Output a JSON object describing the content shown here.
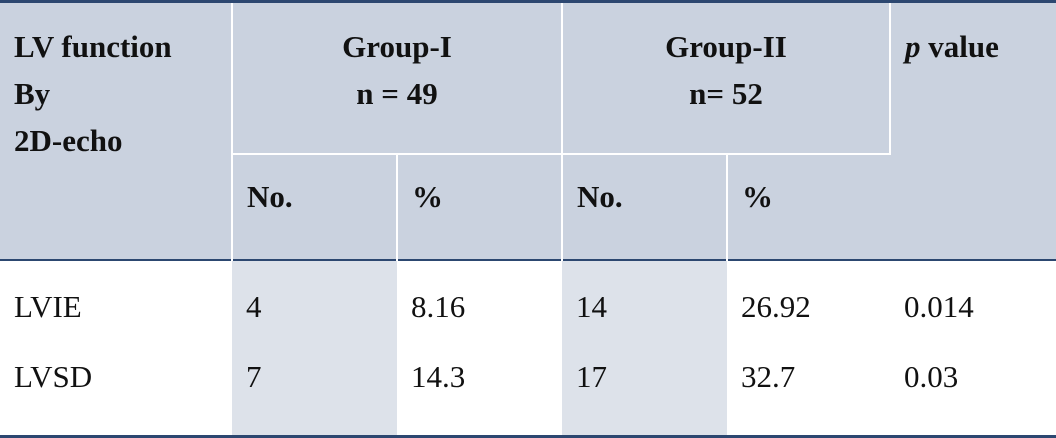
{
  "header": {
    "col0": [
      "LV function",
      "By",
      "2D-echo"
    ],
    "group1": [
      "Group-I",
      "n = 49"
    ],
    "group2": [
      "Group-II",
      "n= 52"
    ],
    "p_symbol": "p",
    "p_label": "value",
    "sub": [
      "No.",
      "%",
      "No.",
      "%"
    ]
  },
  "table": {
    "rows": [
      [
        "LVIE",
        "4",
        "8.16",
        "14",
        "26.92",
        "0.014"
      ],
      [
        "LVSD",
        "7",
        "14.3",
        "17",
        "32.7",
        "0.03"
      ]
    ]
  }
}
